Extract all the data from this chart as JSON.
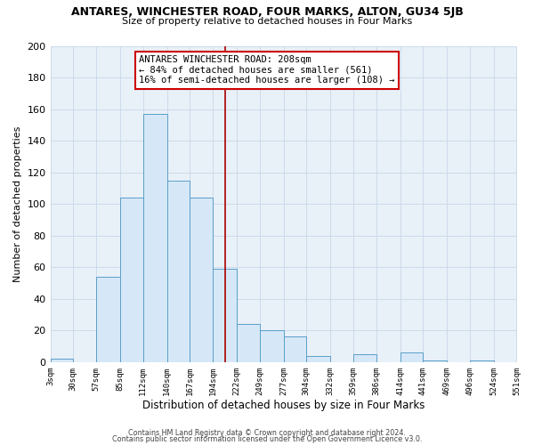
{
  "title": "ANTARES, WINCHESTER ROAD, FOUR MARKS, ALTON, GU34 5JB",
  "subtitle": "Size of property relative to detached houses in Four Marks",
  "xlabel": "Distribution of detached houses by size in Four Marks",
  "ylabel": "Number of detached properties",
  "bin_edges": [
    3,
    30,
    57,
    85,
    112,
    140,
    167,
    194,
    222,
    249,
    277,
    304,
    332,
    359,
    386,
    414,
    441,
    469,
    496,
    524,
    551
  ],
  "bin_labels": [
    "3sqm",
    "30sqm",
    "57sqm",
    "85sqm",
    "112sqm",
    "140sqm",
    "167sqm",
    "194sqm",
    "222sqm",
    "249sqm",
    "277sqm",
    "304sqm",
    "332sqm",
    "359sqm",
    "386sqm",
    "414sqm",
    "441sqm",
    "469sqm",
    "496sqm",
    "524sqm",
    "551sqm"
  ],
  "counts": [
    2,
    0,
    54,
    104,
    157,
    115,
    104,
    59,
    24,
    20,
    16,
    4,
    0,
    5,
    0,
    6,
    1,
    0,
    1,
    0
  ],
  "bar_facecolor": "#d6e8f7",
  "bar_edgecolor": "#5a9ec9",
  "grid_color": "#c8d8e8",
  "vline_x": 208,
  "vline_color": "#aa0000",
  "annotation_text": "ANTARES WINCHESTER ROAD: 208sqm\n← 84% of detached houses are smaller (561)\n16% of semi-detached houses are larger (108) →",
  "annotation_box_edgecolor": "#cc0000",
  "annotation_box_facecolor": "#ffffff",
  "ylim": [
    0,
    200
  ],
  "yticks": [
    0,
    20,
    40,
    60,
    80,
    100,
    120,
    140,
    160,
    180,
    200
  ],
  "footer1": "Contains HM Land Registry data © Crown copyright and database right 2024.",
  "footer2": "Contains public sector information licensed under the Open Government Licence v3.0.",
  "background_color": "#ffffff",
  "plot_bg_color": "#e8f0f8"
}
